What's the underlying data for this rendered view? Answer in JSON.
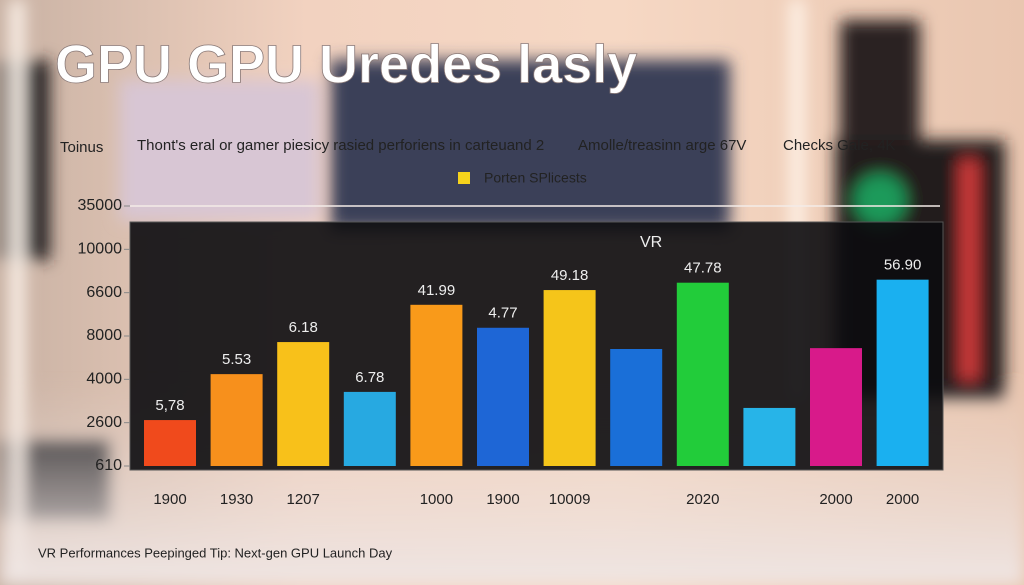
{
  "chart_data": {
    "type": "bar",
    "title": "GPU GPU Uredes lasly",
    "ylabel": "Toinus",
    "header_texts": [
      "Thont's eral or gamer piesicy rasied perforiens in carteuand 2",
      "Amolle/treasinn arge 67V",
      "Checks Gale, 4K"
    ],
    "panel_label": "VR",
    "footer": "VR Performances Peepinged Tip: Next-gen GPU Launch Day",
    "categories": [
      "1900",
      "1930",
      "1207",
      null,
      "1000",
      "1900",
      "10009",
      null,
      "2020",
      null,
      "2000",
      "2000"
    ],
    "series": [
      {
        "name": "Porten SPlicests",
        "color": "#f6d31c",
        "values": [
          1.06,
          2.12,
          2.86,
          1.71,
          3.72,
          3.19,
          4.06,
          2.7,
          4.23,
          1.34,
          2.72,
          4.3
        ],
        "colors": [
          "#f04a1c",
          "#f7901c",
          "#f8c11a",
          "#27a9e1",
          "#f99a1a",
          "#1e66d6",
          "#f5c51a",
          "#1a6fd8",
          "#22cc3a",
          "#27b4e8",
          "#d81a8a",
          "#1ab0f0"
        ],
        "bar_labels": [
          "5,78",
          "5.53",
          "6.18",
          "6.78",
          "41.99",
          "4.77",
          "49.18",
          null,
          "47.78",
          null,
          null,
          "56.90"
        ]
      }
    ],
    "ylim": [
      0,
      6
    ],
    "yticks": [
      {
        "value": 0,
        "label": "610"
      },
      {
        "value": 1,
        "label": "2600"
      },
      {
        "value": 2,
        "label": "4000"
      },
      {
        "value": 3,
        "label": "8000"
      },
      {
        "value": 4,
        "label": "6600"
      },
      {
        "value": 5,
        "label": "10000"
      },
      {
        "value": 6,
        "label": "35000"
      }
    ]
  }
}
